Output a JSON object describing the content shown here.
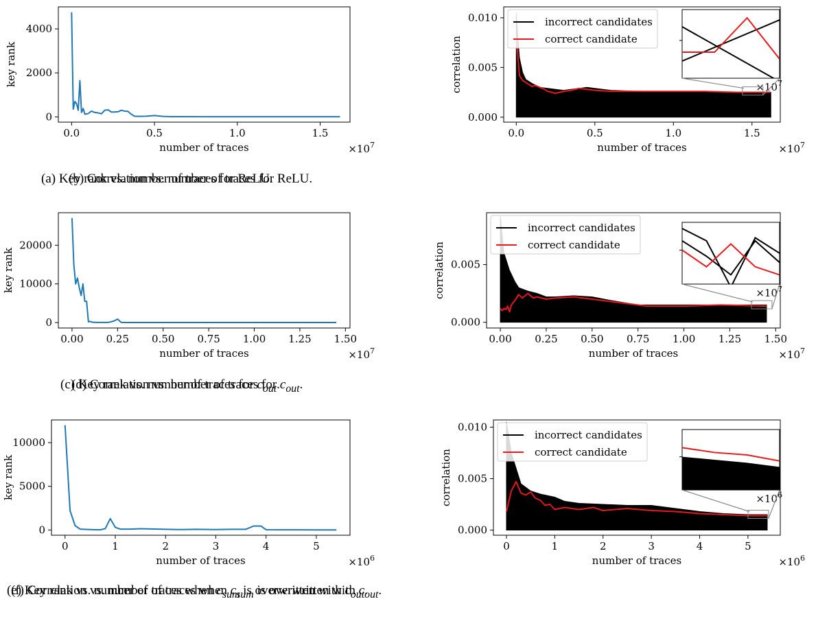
{
  "chart_data": [
    {
      "type": "line",
      "panel": "a",
      "caption": "(a) Key rank vs. number of traces for ReLU.",
      "xlabel": "number of traces",
      "ylabel": "key rank",
      "x_multiplier": "×10^7",
      "xlim": [
        -0.08,
        1.68
      ],
      "ylim": [
        -240,
        5000
      ],
      "xticks": [
        0.0,
        0.5,
        1.0,
        1.5
      ],
      "xtick_labels": [
        "0.0",
        "0.5",
        "1.0",
        "1.5"
      ],
      "yticks": [
        0,
        2000,
        4000
      ],
      "ytick_labels": [
        "0",
        "2000",
        "4000"
      ],
      "series": [
        {
          "color": "#1f77b4",
          "x": [
            0.0,
            0.01,
            0.02,
            0.03,
            0.04,
            0.05,
            0.06,
            0.07,
            0.08,
            0.1,
            0.12,
            0.14,
            0.16,
            0.18,
            0.2,
            0.22,
            0.24,
            0.26,
            0.28,
            0.3,
            0.32,
            0.34,
            0.36,
            0.38,
            0.4,
            0.45,
            0.5,
            0.55,
            0.6,
            0.8,
            1.0,
            1.2,
            1.4,
            1.62
          ],
          "y": [
            4750,
            350,
            700,
            600,
            300,
            1650,
            200,
            380,
            120,
            150,
            260,
            200,
            180,
            140,
            300,
            320,
            220,
            220,
            230,
            300,
            260,
            250,
            120,
            30,
            20,
            30,
            60,
            20,
            10,
            5,
            5,
            5,
            5,
            5
          ]
        }
      ]
    },
    {
      "type": "line",
      "panel": "b",
      "caption": "(b) Correlation vs. number of traces for ReLU.",
      "xlabel": "number of traces",
      "ylabel": "correlation",
      "x_multiplier": "×10^7",
      "xlim": [
        -0.08,
        1.68
      ],
      "ylim": [
        -0.0005,
        0.0111
      ],
      "xticks": [
        0.0,
        0.5,
        1.0,
        1.5
      ],
      "xtick_labels": [
        "0.0",
        "0.5",
        "1.0",
        "1.5"
      ],
      "yticks": [
        0.0,
        0.005,
        0.01
      ],
      "ytick_labels": [
        "0.000",
        "0.005",
        "0.010"
      ],
      "legend": {
        "position": "top-left",
        "entries": [
          "incorrect candidates",
          "correct candidate"
        ]
      },
      "incorrect_envelope": {
        "color": "#000000",
        "x": [
          0.0,
          0.01,
          0.02,
          0.04,
          0.06,
          0.1,
          0.15,
          0.2,
          0.3,
          0.45,
          0.6,
          0.8,
          1.0,
          1.2,
          1.4,
          1.62
        ],
        "upper": [
          0.0105,
          0.008,
          0.006,
          0.0045,
          0.0038,
          0.0034,
          0.003,
          0.0029,
          0.0027,
          0.003,
          0.0027,
          0.0026,
          0.0026,
          0.0026,
          0.0025,
          0.0025
        ],
        "lower": [
          0.0,
          0.0,
          0.0,
          0.0,
          0.0,
          0.0,
          0.0,
          0.0,
          0.0,
          0.0,
          0.0,
          0.0,
          0.0,
          0.0,
          0.0,
          0.0
        ]
      },
      "series": [
        {
          "name": "correct candidate",
          "color": "#e41a1c",
          "x": [
            0.0,
            0.02,
            0.04,
            0.06,
            0.08,
            0.1,
            0.12,
            0.15,
            0.18,
            0.2,
            0.25,
            0.3,
            0.35,
            0.4,
            0.45,
            0.5,
            0.6,
            0.8,
            1.0,
            1.2,
            1.4,
            1.62
          ],
          "y": [
            0.0082,
            0.0042,
            0.0037,
            0.0035,
            0.0033,
            0.0031,
            0.0032,
            0.003,
            0.0028,
            0.0026,
            0.0024,
            0.0026,
            0.0027,
            0.0029,
            0.0028,
            0.0027,
            0.0026,
            0.0026,
            0.0026,
            0.0026,
            0.0025,
            0.0025
          ]
        }
      ],
      "inset": {
        "incorrect": [
          [
            0.75,
            0.15
          ],
          [
            0.25,
            1.05
          ]
        ],
        "correct": [
          0.62,
          0.62,
          0.12,
          0.72
        ]
      }
    },
    {
      "type": "line",
      "panel": "c",
      "caption": "(c) Key rank vs. number of traces for c_out.",
      "xlabel": "number of traces",
      "ylabel": "key rank",
      "x_multiplier": "×10^7",
      "xlim": [
        -0.075,
        1.525
      ],
      "ylim": [
        -1400,
        28400
      ],
      "xticks": [
        0.0,
        0.25,
        0.5,
        0.75,
        1.0,
        1.25,
        1.5
      ],
      "xtick_labels": [
        "0.00",
        "0.25",
        "0.50",
        "0.75",
        "1.00",
        "1.25",
        "1.50"
      ],
      "yticks": [
        0,
        10000,
        20000
      ],
      "ytick_labels": [
        "0",
        "10000",
        "20000"
      ],
      "series": [
        {
          "color": "#1f77b4",
          "x": [
            0.0,
            0.01,
            0.02,
            0.03,
            0.04,
            0.05,
            0.06,
            0.07,
            0.08,
            0.09,
            0.1,
            0.11,
            0.13,
            0.15,
            0.2,
            0.23,
            0.25,
            0.27,
            0.3,
            0.5,
            0.75,
            1.0,
            1.25,
            1.45
          ],
          "y": [
            27000,
            15000,
            10000,
            11500,
            9000,
            7000,
            10000,
            5500,
            5500,
            200,
            300,
            100,
            50,
            50,
            50,
            400,
            900,
            50,
            30,
            10,
            10,
            10,
            10,
            10
          ]
        }
      ]
    },
    {
      "type": "line",
      "panel": "d",
      "caption": "(d) Correlation vs. number of traces for c_out.",
      "xlabel": "number of traces",
      "ylabel": "correlation",
      "x_multiplier": "×10^7",
      "xlim": [
        -0.075,
        1.525
      ],
      "ylim": [
        -0.0005,
        0.0095
      ],
      "xticks": [
        0.0,
        0.25,
        0.5,
        0.75,
        1.0,
        1.25,
        1.5
      ],
      "xtick_labels": [
        "0.00",
        "0.25",
        "0.50",
        "0.75",
        "1.00",
        "1.25",
        "1.50"
      ],
      "yticks": [
        0.0,
        0.005
      ],
      "ytick_labels": [
        "0.000",
        "0.005"
      ],
      "legend": {
        "position": "top-left",
        "entries": [
          "incorrect candidates",
          "correct candidate"
        ]
      },
      "incorrect_envelope": {
        "color": "#000000",
        "x": [
          0.0,
          0.01,
          0.02,
          0.05,
          0.08,
          0.1,
          0.15,
          0.2,
          0.25,
          0.3,
          0.4,
          0.5,
          0.6,
          0.75,
          0.9,
          1.0,
          1.2,
          1.45
        ],
        "upper": [
          0.0092,
          0.0075,
          0.006,
          0.0045,
          0.0035,
          0.003,
          0.0027,
          0.0025,
          0.0022,
          0.0022,
          0.0023,
          0.0022,
          0.0019,
          0.0015,
          0.0015,
          0.0015,
          0.0015,
          0.0015
        ],
        "lower": [
          0.0,
          0.0,
          0.0,
          0.0,
          0.0,
          0.0,
          0.0,
          0.0,
          0.0,
          0.0,
          0.0,
          0.0,
          0.0,
          0.0,
          0.0,
          0.0,
          0.0,
          0.0
        ]
      },
      "series": [
        {
          "name": "correct candidate",
          "color": "#e41a1c",
          "x": [
            0.0,
            0.01,
            0.02,
            0.03,
            0.04,
            0.05,
            0.06,
            0.08,
            0.1,
            0.12,
            0.15,
            0.18,
            0.2,
            0.25,
            0.3,
            0.4,
            0.5,
            0.6,
            0.7,
            0.8,
            1.0,
            1.2,
            1.45
          ],
          "y": [
            0.0012,
            0.001,
            0.0012,
            0.0011,
            0.0014,
            0.0009,
            0.0015,
            0.0019,
            0.0024,
            0.0021,
            0.0025,
            0.0021,
            0.0022,
            0.002,
            0.0021,
            0.0022,
            0.002,
            0.0018,
            0.0016,
            0.0014,
            0.0014,
            0.0015,
            0.0014
          ]
        }
      ],
      "inset": {
        "incorrect": [
          [
            0.3,
            0.55,
            0.85,
            0.3,
            0.65
          ],
          [
            0.1,
            0.3,
            1.05,
            0.25,
            0.5
          ]
        ],
        "correct": [
          0.45,
          0.72,
          0.35,
          0.72,
          0.85
        ]
      }
    },
    {
      "type": "line",
      "panel": "e",
      "caption": "(e) Key rank vs. number of traces when c_sum is overwritten with c_out.",
      "xlabel": "number of traces",
      "ylabel": "key rank",
      "x_multiplier": "×10^6",
      "xlim": [
        -0.27,
        5.67
      ],
      "ylim": [
        -600,
        12600
      ],
      "xticks": [
        0,
        1,
        2,
        3,
        4,
        5
      ],
      "xtick_labels": [
        "0",
        "1",
        "2",
        "3",
        "4",
        "5"
      ],
      "yticks": [
        0,
        5000,
        10000
      ],
      "ytick_labels": [
        "0",
        "5000",
        "10000"
      ],
      "series": [
        {
          "color": "#1f77b4",
          "x": [
            0.0,
            0.1,
            0.2,
            0.3,
            0.5,
            0.7,
            0.8,
            0.9,
            1.0,
            1.1,
            1.3,
            1.5,
            1.7,
            2.0,
            2.3,
            2.6,
            3.0,
            3.3,
            3.6,
            3.75,
            3.9,
            4.0,
            4.3,
            4.7,
            5.0,
            5.4
          ],
          "y": [
            12000,
            2200,
            500,
            100,
            50,
            20,
            150,
            1300,
            300,
            100,
            100,
            150,
            120,
            80,
            50,
            80,
            50,
            80,
            80,
            450,
            450,
            30,
            20,
            20,
            10,
            10
          ]
        }
      ]
    },
    {
      "type": "line",
      "panel": "f",
      "caption": "(f) Correlation vs. number of traces when c_sum is overwritten with c_out.",
      "xlabel": "number of traces",
      "ylabel": "correlation",
      "x_multiplier": "×10^6",
      "xlim": [
        -0.27,
        5.67
      ],
      "ylim": [
        -0.0005,
        0.0107
      ],
      "xticks": [
        0,
        1,
        2,
        3,
        4,
        5
      ],
      "xtick_labels": [
        "0",
        "1",
        "2",
        "3",
        "4",
        "5"
      ],
      "yticks": [
        0.0,
        0.005,
        0.01
      ],
      "ytick_labels": [
        "0.000",
        "0.005",
        "0.010"
      ],
      "legend": {
        "position": "top-left",
        "entries": [
          "incorrect candidates",
          "correct candidate"
        ]
      },
      "incorrect_envelope": {
        "color": "#000000",
        "x": [
          0.0,
          0.05,
          0.1,
          0.2,
          0.3,
          0.5,
          0.7,
          0.9,
          1.0,
          1.2,
          1.5,
          2.0,
          2.5,
          3.0,
          3.5,
          4.0,
          4.5,
          5.0,
          5.4
        ],
        "upper": [
          0.0105,
          0.009,
          0.0075,
          0.006,
          0.0045,
          0.0038,
          0.0035,
          0.0033,
          0.0032,
          0.0028,
          0.0026,
          0.0025,
          0.0024,
          0.0024,
          0.0021,
          0.0018,
          0.0016,
          0.0015,
          0.0015
        ],
        "lower": [
          0.0,
          0.0,
          0.0,
          0.0,
          0.0,
          0.0,
          0.0,
          0.0,
          0.0,
          0.0,
          0.0,
          0.0,
          0.0,
          0.0,
          0.0,
          0.0,
          0.0,
          0.0,
          0.0
        ]
      },
      "series": [
        {
          "name": "correct candidate",
          "color": "#e41a1c",
          "x": [
            0.0,
            0.1,
            0.2,
            0.3,
            0.4,
            0.5,
            0.6,
            0.7,
            0.8,
            0.9,
            1.0,
            1.2,
            1.5,
            1.8,
            2.0,
            2.5,
            3.0,
            3.5,
            4.0,
            4.5,
            5.0,
            5.4
          ],
          "y": [
            0.0018,
            0.0038,
            0.0047,
            0.0036,
            0.0034,
            0.0037,
            0.0031,
            0.0029,
            0.0024,
            0.0025,
            0.002,
            0.0022,
            0.002,
            0.0022,
            0.0019,
            0.0021,
            0.0019,
            0.0018,
            0.0016,
            0.0015,
            0.0014,
            0.0014
          ]
        }
      ],
      "inset": {
        "incorrect": [
          [
            0.45,
            0.5,
            0.55,
            0.62
          ]
        ],
        "correct": [
          0.3,
          0.38,
          0.42,
          0.52
        ]
      }
    }
  ]
}
